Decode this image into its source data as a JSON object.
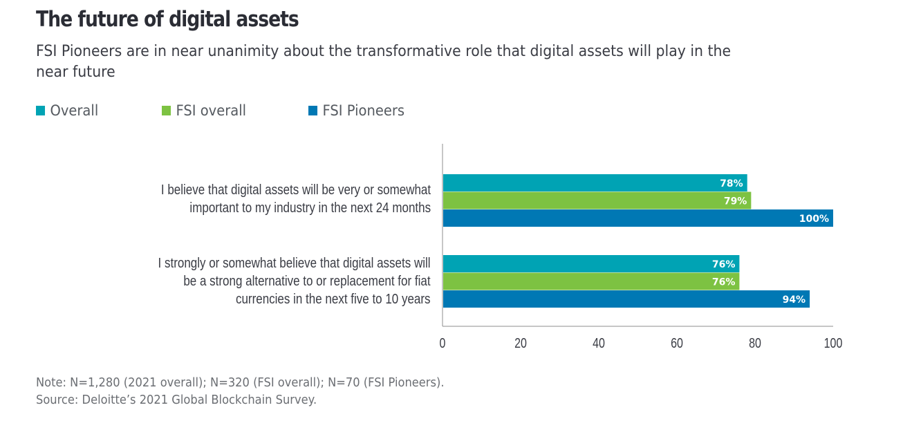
{
  "chart_data": {
    "type": "bar",
    "orientation": "horizontal",
    "title": "The future of digital assets",
    "subtitle": "FSI Pioneers are in near unanimity about the transformative role that digital assets will play in the near future",
    "categories": [
      [
        "I believe that digital assets will be very or somewhat",
        "important to my industry in the next 24 months"
      ],
      [
        "I strongly or somewhat believe that digital assets will",
        "be a strong alternative to or replacement for fiat",
        "currencies in the next five to 10 years"
      ]
    ],
    "series": [
      {
        "name": "Overall",
        "color": "#00A3B4",
        "values": [
          78,
          76
        ],
        "labels": [
          "78%",
          "76%"
        ]
      },
      {
        "name": "FSI overall",
        "color": "#7DC242",
        "values": [
          79,
          76
        ],
        "labels": [
          "79%",
          "76%"
        ]
      },
      {
        "name": "FSI Pioneers",
        "color": "#0078B4",
        "values": [
          100,
          94
        ],
        "labels": [
          "100%",
          "94%"
        ]
      }
    ],
    "xlim": [
      0,
      100
    ],
    "xticks": [
      "0",
      "20",
      "40",
      "60",
      "80",
      "100"
    ],
    "xtick_values": [
      0,
      20,
      40,
      60,
      80,
      100
    ],
    "xlabel": "",
    "ylabel": "",
    "grid": false,
    "legend_position": "top-left"
  },
  "footer": {
    "note": "Note:  N=1,280 (2021 overall); N=320 (FSI overall); N=70 (FSI Pioneers).",
    "source": "Source: Deloitte’s 2021 Global Blockchain Survey."
  }
}
